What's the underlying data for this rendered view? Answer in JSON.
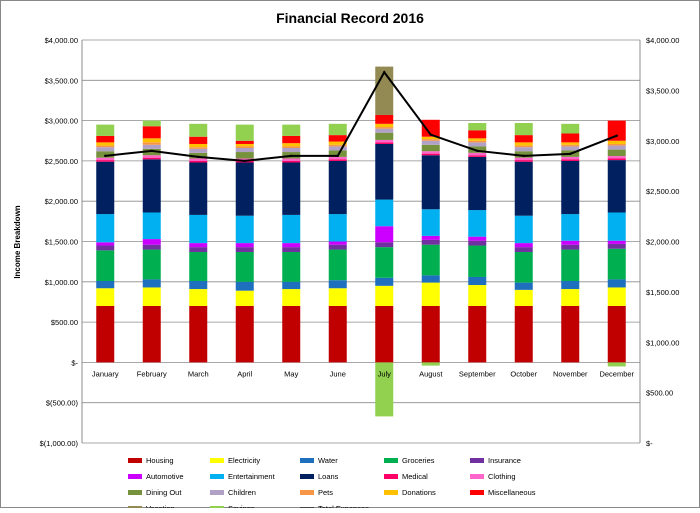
{
  "chart_data": {
    "type": "bar",
    "stacked": true,
    "title": "Financial Record 2016",
    "ylabel": "Income Breakdown",
    "ylim": [
      -1000,
      4000
    ],
    "y2lim": [
      0,
      4000
    ],
    "y_ticks": [
      {
        "value": 4000,
        "label": "$4,000.00"
      },
      {
        "value": 3500,
        "label": "$3,500.00"
      },
      {
        "value": 3000,
        "label": "$3,000.00"
      },
      {
        "value": 2500,
        "label": "$2,500.00"
      },
      {
        "value": 2000,
        "label": "$2,000.00"
      },
      {
        "value": 1500,
        "label": "$1,500.00"
      },
      {
        "value": 1000,
        "label": "$1,000.00"
      },
      {
        "value": 500,
        "label": "$500.00"
      },
      {
        "value": 0,
        "label": "$-"
      },
      {
        "value": -500,
        "label": "$(500.00)"
      },
      {
        "value": -1000,
        "label": "$(1,000.00)"
      }
    ],
    "y2_ticks": [
      {
        "value": 4000,
        "label": "$4,000.00"
      },
      {
        "value": 3500,
        "label": "$3,500.00"
      },
      {
        "value": 3000,
        "label": "$3,000.00"
      },
      {
        "value": 2500,
        "label": "$2,500.00"
      },
      {
        "value": 2000,
        "label": "$2,000.00"
      },
      {
        "value": 1500,
        "label": "$1,500.00"
      },
      {
        "value": 1000,
        "label": "$1,000.00"
      },
      {
        "value": 500,
        "label": "$500.00"
      },
      {
        "value": 0,
        "label": "$-"
      }
    ],
    "categories": [
      "January",
      "February",
      "March",
      "April",
      "May",
      "June",
      "July",
      "August",
      "September",
      "October",
      "November",
      "December"
    ],
    "legend_position": "bottom",
    "series": [
      {
        "name": "Housing",
        "color": "#C00000",
        "values": [
          700,
          700,
          700,
          700,
          700,
          700,
          700,
          700,
          700,
          700,
          700,
          700
        ]
      },
      {
        "name": "Electricity",
        "color": "#FFFF00",
        "values": [
          220,
          230,
          210,
          190,
          210,
          220,
          250,
          290,
          260,
          200,
          210,
          230
        ]
      },
      {
        "name": "Water",
        "color": "#1F6FBF",
        "values": [
          90,
          100,
          100,
          110,
          90,
          100,
          100,
          90,
          100,
          90,
          100,
          100
        ]
      },
      {
        "name": "Groceries",
        "color": "#00B050",
        "values": [
          380,
          370,
          360,
          370,
          370,
          380,
          380,
          380,
          390,
          380,
          390,
          380
        ]
      },
      {
        "name": "Insurance",
        "color": "#7030A0",
        "values": [
          60,
          60,
          60,
          60,
          60,
          60,
          60,
          60,
          60,
          60,
          60,
          60
        ]
      },
      {
        "name": "Automotive",
        "color": "#CC00FF",
        "values": [
          40,
          70,
          50,
          50,
          50,
          40,
          200,
          50,
          50,
          50,
          50,
          40
        ]
      },
      {
        "name": "Entertainment",
        "color": "#00B0F0",
        "values": [
          350,
          330,
          350,
          340,
          350,
          340,
          330,
          330,
          330,
          340,
          330,
          350
        ]
      },
      {
        "name": "Loans",
        "color": "#002060",
        "values": [
          650,
          660,
          650,
          660,
          650,
          660,
          690,
          670,
          660,
          670,
          660,
          650
        ]
      },
      {
        "name": "Medical",
        "color": "#FF0066",
        "values": [
          20,
          20,
          20,
          20,
          20,
          20,
          20,
          20,
          20,
          20,
          20,
          20
        ]
      },
      {
        "name": "Clothing",
        "color": "#FF66CC",
        "values": [
          30,
          30,
          30,
          30,
          30,
          30,
          30,
          30,
          30,
          30,
          30,
          30
        ]
      },
      {
        "name": "Dining Out",
        "color": "#76923C",
        "values": [
          80,
          80,
          70,
          80,
          80,
          80,
          90,
          80,
          80,
          80,
          80,
          80
        ]
      },
      {
        "name": "Children",
        "color": "#B2A1C7",
        "values": [
          50,
          50,
          50,
          50,
          50,
          50,
          50,
          50,
          50,
          50,
          50,
          50
        ]
      },
      {
        "name": "Pets",
        "color": "#F79646",
        "values": [
          20,
          30,
          20,
          20,
          20,
          20,
          20,
          20,
          20,
          20,
          20,
          20
        ]
      },
      {
        "name": "Donations",
        "color": "#FFC000",
        "values": [
          40,
          50,
          40,
          30,
          40,
          40,
          40,
          30,
          30,
          40,
          30,
          40
        ]
      },
      {
        "name": "Miscellaneous",
        "color": "#FF0000",
        "values": [
          80,
          150,
          90,
          40,
          90,
          80,
          110,
          210,
          100,
          90,
          110,
          250
        ]
      },
      {
        "name": "Vacation",
        "color": "#938953",
        "values": [
          0,
          0,
          0,
          0,
          0,
          0,
          600,
          0,
          0,
          0,
          0,
          0
        ]
      },
      {
        "name": "Savings",
        "color": "#92D050",
        "values": [
          140,
          70,
          160,
          200,
          140,
          140,
          -670,
          -40,
          90,
          150,
          120,
          -50
        ]
      }
    ],
    "line_series": {
      "name": "Total Expenses",
      "color": "#000000",
      "axis": "secondary",
      "values": [
        2850,
        2900,
        2840,
        2800,
        2850,
        2850,
        3680,
        3060,
        2900,
        2850,
        2870,
        3050
      ]
    }
  }
}
